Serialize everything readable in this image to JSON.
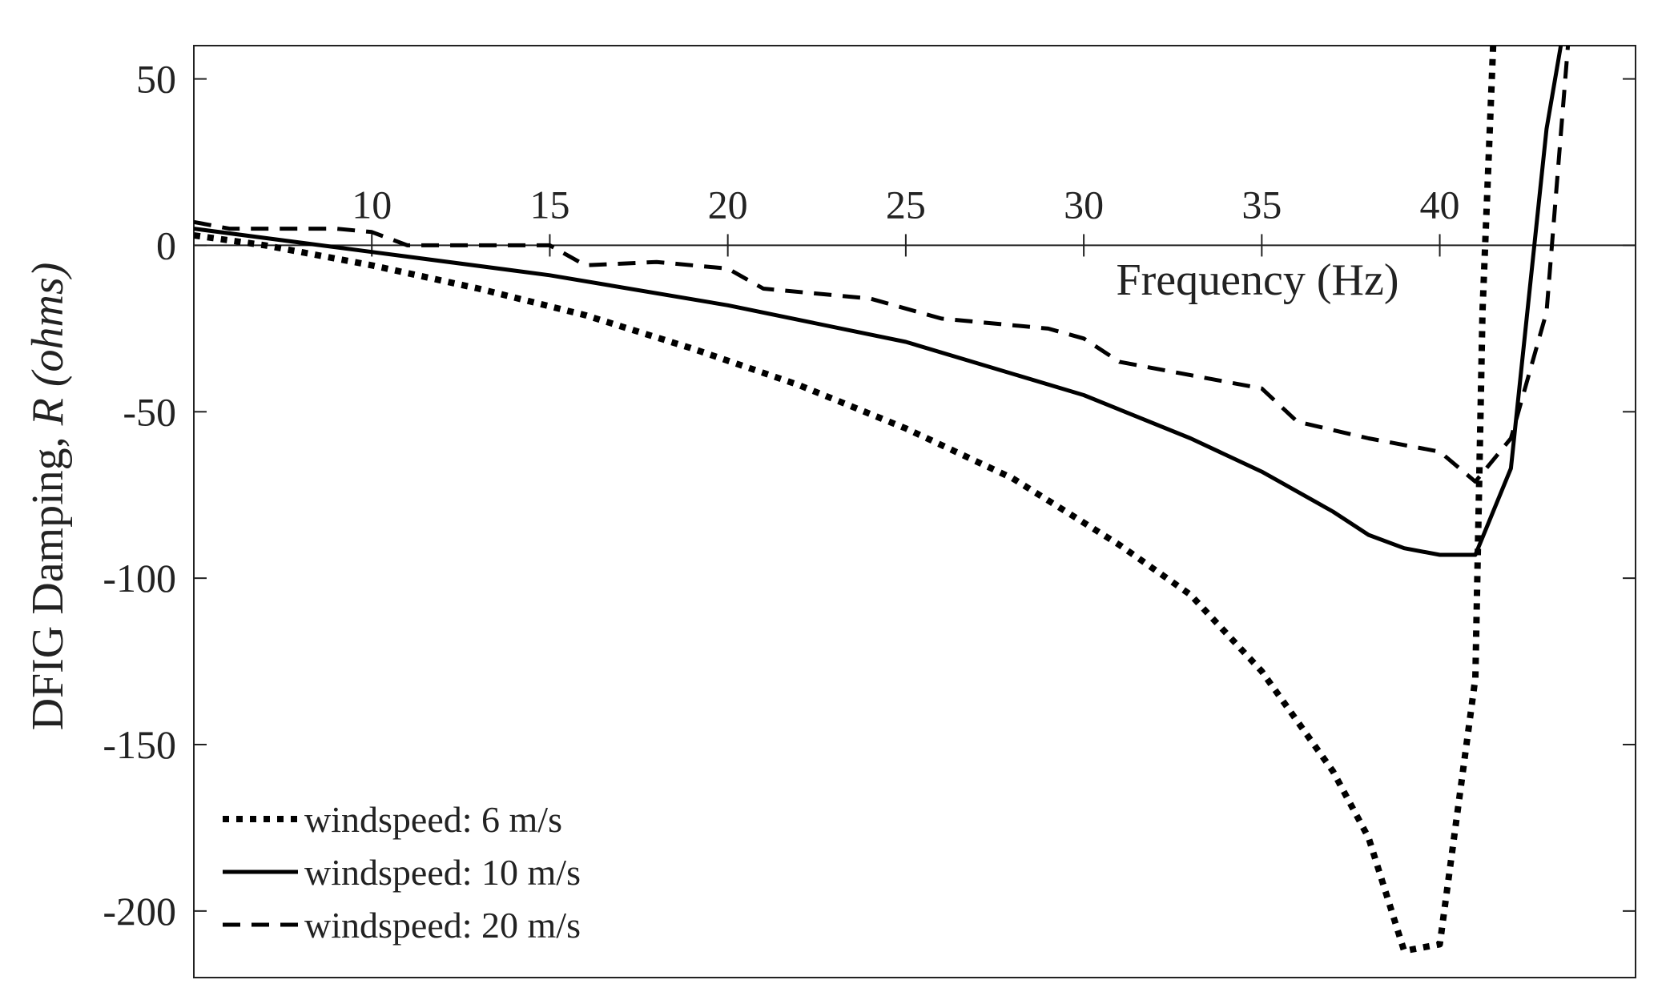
{
  "chart_data": {
    "type": "line",
    "title": "",
    "xlabel": "Frequency (Hz)",
    "ylabel_main": "DFIG Damping, ",
    "ylabel_italic": "R (ohms)",
    "xlim": [
      5,
      45.5
    ],
    "ylim": [
      -220,
      60
    ],
    "xticks": [
      10,
      15,
      20,
      25,
      30,
      35,
      40
    ],
    "yticks": [
      50,
      0,
      -50,
      -100,
      -150,
      -200
    ],
    "xtick_labels": [
      "10",
      "15",
      "20",
      "25",
      "30",
      "35",
      "40"
    ],
    "ytick_labels": [
      "50",
      "0",
      "-50",
      "-100",
      "-150",
      "-200"
    ],
    "legend_position": "bottom-left",
    "series": [
      {
        "name": "windspeed: 6 m/s",
        "style": "dotted",
        "x": [
          5,
          7,
          10,
          13,
          16,
          19,
          22,
          25,
          28,
          31,
          33,
          35,
          37,
          38,
          39,
          40,
          41,
          41.2,
          41.5
        ],
        "y": [
          3,
          0,
          -6,
          -13,
          -21,
          -31,
          -42,
          -55,
          -70,
          -90,
          -105,
          -128,
          -158,
          -178,
          -212,
          -210,
          -130,
          -20,
          60
        ]
      },
      {
        "name": "windspeed: 10 m/s",
        "style": "solid",
        "x": [
          5,
          10,
          15,
          20,
          25,
          30,
          33,
          35,
          37,
          38,
          39,
          40,
          41,
          42,
          43,
          43.4
        ],
        "y": [
          5,
          -2,
          -9,
          -18,
          -29,
          -45,
          -58,
          -68,
          -80,
          -87,
          -91,
          -93,
          -93,
          -67,
          35,
          60
        ]
      },
      {
        "name": "windspeed: 20 m/s",
        "style": "dashed",
        "x": [
          5,
          6,
          9,
          10,
          11,
          13,
          15,
          16,
          18,
          20,
          21,
          24,
          26,
          29,
          30,
          31,
          33,
          35,
          36,
          38,
          40,
          41,
          42,
          43,
          43.6
        ],
        "y": [
          7,
          5,
          5,
          4,
          0,
          0,
          0,
          -6,
          -5,
          -7,
          -13,
          -16,
          -22,
          -25,
          -28,
          -35,
          -39,
          -43,
          -53,
          -58,
          -62,
          -71,
          -58,
          -20,
          60
        ]
      }
    ]
  }
}
